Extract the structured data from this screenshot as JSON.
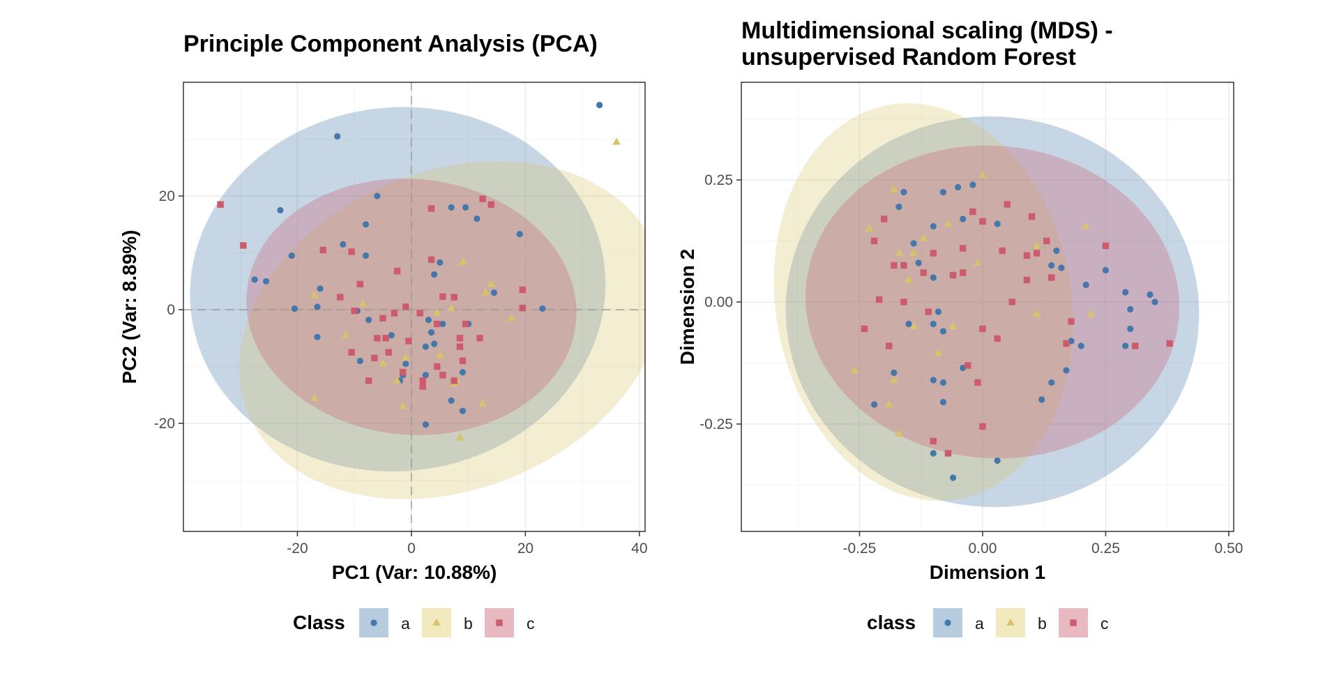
{
  "colors": {
    "a": "#4477aa",
    "b": "#d8c36a",
    "c": "#cc5b6e"
  },
  "fill_colors": {
    "a": "#b8cce0",
    "b": "#f3e9bf",
    "c": "#e9b9c2"
  },
  "chart_data": [
    {
      "type": "scatter",
      "title_lines": [
        "Principle Component Analysis (PCA)"
      ],
      "xlabel": "PC1 (Var: 10.88%)",
      "ylabel": "PC2 (Var: 8.89%)",
      "xlim": [
        -40,
        41
      ],
      "ylim": [
        -39,
        40
      ],
      "xticks": [
        -20,
        0,
        20,
        40
      ],
      "xtick_labels": [
        "-20",
        "0",
        "20",
        "40"
      ],
      "yticks": [
        -20,
        0,
        20
      ],
      "ytick_labels": [
        "-20",
        "0",
        "20"
      ],
      "grid": true,
      "reference_lines": true,
      "legend": {
        "title": "Class",
        "position": "bottom",
        "labels": [
          "a",
          "b",
          "c"
        ]
      },
      "ellipses": [
        {
          "class": "a",
          "cx": -2.4,
          "cy": 3.6,
          "rx": 36.5,
          "ry": 32.0,
          "angle": 6
        },
        {
          "class": "b",
          "cx": 7.0,
          "cy": -3.6,
          "rx": 38.5,
          "ry": 28.0,
          "angle": 22
        },
        {
          "class": "c",
          "cx": 0.0,
          "cy": 0.5,
          "rx": 29.0,
          "ry": 22.5,
          "angle": -5
        }
      ],
      "series": [
        {
          "name": "a",
          "marker": "circle",
          "points": [
            [
              -13,
              30.5
            ],
            [
              33,
              36
            ],
            [
              -6,
              20
            ],
            [
              -23,
              17.5
            ],
            [
              7,
              18
            ],
            [
              9.5,
              18
            ],
            [
              11.5,
              16
            ],
            [
              -8,
              15
            ],
            [
              19,
              13.3
            ],
            [
              -12,
              11.5
            ],
            [
              -21,
              9.5
            ],
            [
              -8,
              9.5
            ],
            [
              -27.5,
              5.3
            ],
            [
              -25.5,
              5
            ],
            [
              5,
              8.3
            ],
            [
              4,
              6.2
            ],
            [
              -16,
              3.7
            ],
            [
              14.5,
              3
            ],
            [
              -20.5,
              0.2
            ],
            [
              -16.5,
              0.5
            ],
            [
              -9.5,
              -0.2
            ],
            [
              23,
              0.2
            ],
            [
              -7.5,
              -1.8
            ],
            [
              3,
              -1.8
            ],
            [
              5.5,
              -2.5
            ],
            [
              10,
              -2.5
            ],
            [
              -16.5,
              -4.8
            ],
            [
              -3.5,
              -4.5
            ],
            [
              3.5,
              -4
            ],
            [
              2.5,
              -6.5
            ],
            [
              4,
              -6
            ],
            [
              -9,
              -9
            ],
            [
              -1,
              -9.5
            ],
            [
              -1.5,
              -11.5
            ],
            [
              9,
              -11
            ],
            [
              2.5,
              -11.5
            ],
            [
              -2,
              -12.5
            ],
            [
              7,
              -16
            ],
            [
              9,
              -17.8
            ],
            [
              2.5,
              -20.2
            ]
          ]
        },
        {
          "name": "b",
          "marker": "triangle",
          "points": [
            [
              36,
              29.5
            ],
            [
              9,
              8.4
            ],
            [
              14,
              4.5
            ],
            [
              13,
              3
            ],
            [
              -17,
              2.5
            ],
            [
              -8.5,
              1
            ],
            [
              7,
              0.2
            ],
            [
              4.5,
              -0.5
            ],
            [
              17.5,
              -1.5
            ],
            [
              -11.5,
              -4.5
            ],
            [
              -1,
              -8.5
            ],
            [
              -5,
              -9.5
            ],
            [
              5,
              -8
            ],
            [
              -2.5,
              -12.5
            ],
            [
              8,
              -12.5
            ],
            [
              7.5,
              -13
            ],
            [
              -1.5,
              -17
            ],
            [
              12.5,
              -16.5
            ],
            [
              -17,
              -15.5
            ],
            [
              8.5,
              -22.5
            ]
          ]
        },
        {
          "name": "c",
          "marker": "square",
          "points": [
            [
              -33.5,
              18.5
            ],
            [
              -29.5,
              11.3
            ],
            [
              3.5,
              17.8
            ],
            [
              12.5,
              19.5
            ],
            [
              14,
              18.5
            ],
            [
              -15.5,
              10.5
            ],
            [
              -10.5,
              10.2
            ],
            [
              3.5,
              8.8
            ],
            [
              -2.5,
              6.8
            ],
            [
              -9,
              4.5
            ],
            [
              19.5,
              3.5
            ],
            [
              -12.5,
              2.2
            ],
            [
              5.5,
              2.3
            ],
            [
              7.5,
              2.2
            ],
            [
              -10,
              -0.2
            ],
            [
              -1,
              0.5
            ],
            [
              19.5,
              0.3
            ],
            [
              -5,
              -1.5
            ],
            [
              -3,
              -0.6
            ],
            [
              1.5,
              -0.6
            ],
            [
              4.5,
              -2.5
            ],
            [
              9.5,
              -2.5
            ],
            [
              -6,
              -5
            ],
            [
              -4.5,
              -5
            ],
            [
              -0.5,
              -5.5
            ],
            [
              8.5,
              -5
            ],
            [
              12,
              -5
            ],
            [
              -4,
              -7.5
            ],
            [
              8.5,
              -6.5
            ],
            [
              -10.5,
              -7.5
            ],
            [
              -6.5,
              -8.5
            ],
            [
              4.5,
              -10
            ],
            [
              9,
              -9
            ],
            [
              -7.5,
              -12.5
            ],
            [
              2,
              -12.5
            ],
            [
              5.5,
              -11.5
            ],
            [
              7.5,
              -12.5
            ],
            [
              2,
              -13.5
            ],
            [
              -1.5,
              -11
            ]
          ]
        }
      ]
    },
    {
      "type": "scatter",
      "title_lines": [
        "Multidimensional scaling (MDS) -",
        "unsupervised Random Forest"
      ],
      "xlabel": "Dimension 1",
      "ylabel": "Dimension 2",
      "xlim": [
        -0.49,
        0.51
      ],
      "ylim": [
        -0.47,
        0.45
      ],
      "xticks": [
        -0.25,
        0.0,
        0.25,
        0.5
      ],
      "xtick_labels": [
        "-0.25",
        "0.00",
        "0.25",
        "0.50"
      ],
      "yticks": [
        -0.25,
        0.0,
        0.25
      ],
      "ytick_labels": [
        "-0.25",
        "0.00",
        "0.25"
      ],
      "grid": true,
      "reference_lines": false,
      "legend": {
        "title": "class",
        "position": "bottom",
        "labels": [
          "a",
          "b",
          "c"
        ]
      },
      "ellipses": [
        {
          "class": "a",
          "cx": 0.02,
          "cy": -0.02,
          "rx": 0.42,
          "ry": 0.4,
          "angle": -5
        },
        {
          "class": "b",
          "cx": -0.12,
          "cy": 0.0,
          "rx": 0.3,
          "ry": 0.41,
          "angle": 10
        },
        {
          "class": "c",
          "cx": 0.02,
          "cy": 0.0,
          "rx": 0.38,
          "ry": 0.32,
          "angle": -5
        }
      ],
      "series": [
        {
          "name": "a",
          "marker": "circle",
          "points": [
            [
              -0.16,
              0.225
            ],
            [
              -0.17,
              0.195
            ],
            [
              -0.14,
              0.12
            ],
            [
              -0.1,
              0.155
            ],
            [
              -0.08,
              0.225
            ],
            [
              -0.05,
              0.235
            ],
            [
              -0.02,
              0.24
            ],
            [
              -0.04,
              0.17
            ],
            [
              0.03,
              0.16
            ],
            [
              0.14,
              0.075
            ],
            [
              0.15,
              0.105
            ],
            [
              0.16,
              0.07
            ],
            [
              0.21,
              0.035
            ],
            [
              0.25,
              0.065
            ],
            [
              -0.13,
              0.08
            ],
            [
              -0.1,
              0.05
            ],
            [
              0.29,
              0.02
            ],
            [
              0.34,
              0.015
            ],
            [
              0.35,
              0.0
            ],
            [
              0.3,
              -0.015
            ],
            [
              0.3,
              -0.055
            ],
            [
              0.29,
              -0.09
            ],
            [
              -0.09,
              -0.02
            ],
            [
              -0.1,
              -0.045
            ],
            [
              -0.15,
              -0.045
            ],
            [
              -0.08,
              -0.06
            ],
            [
              0.18,
              -0.08
            ],
            [
              0.2,
              -0.09
            ],
            [
              -0.18,
              -0.145
            ],
            [
              -0.1,
              -0.16
            ],
            [
              -0.08,
              -0.165
            ],
            [
              -0.04,
              -0.135
            ],
            [
              0.14,
              -0.165
            ],
            [
              0.17,
              -0.14
            ],
            [
              -0.22,
              -0.21
            ],
            [
              -0.08,
              -0.205
            ],
            [
              0.12,
              -0.2
            ],
            [
              -0.1,
              -0.31
            ],
            [
              0.03,
              -0.325
            ],
            [
              -0.06,
              -0.36
            ]
          ]
        },
        {
          "name": "b",
          "marker": "triangle",
          "points": [
            [
              0.0,
              0.26
            ],
            [
              -0.18,
              0.23
            ],
            [
              -0.23,
              0.15
            ],
            [
              -0.07,
              0.16
            ],
            [
              -0.12,
              0.13
            ],
            [
              0.21,
              0.155
            ],
            [
              0.11,
              0.115
            ],
            [
              -0.17,
              0.1
            ],
            [
              -0.14,
              0.1
            ],
            [
              -0.15,
              0.045
            ],
            [
              -0.01,
              0.08
            ],
            [
              0.11,
              -0.025
            ],
            [
              0.22,
              -0.025
            ],
            [
              -0.14,
              -0.05
            ],
            [
              -0.06,
              -0.05
            ],
            [
              -0.09,
              -0.105
            ],
            [
              -0.26,
              -0.14
            ],
            [
              -0.18,
              -0.16
            ],
            [
              -0.19,
              -0.21
            ],
            [
              -0.17,
              -0.27
            ]
          ]
        },
        {
          "name": "c",
          "marker": "square",
          "points": [
            [
              0.05,
              0.2
            ],
            [
              -0.02,
              0.185
            ],
            [
              0.1,
              0.175
            ],
            [
              -0.2,
              0.17
            ],
            [
              0.0,
              0.165
            ],
            [
              0.13,
              0.125
            ],
            [
              -0.22,
              0.125
            ],
            [
              0.25,
              0.115
            ],
            [
              -0.04,
              0.11
            ],
            [
              0.04,
              0.105
            ],
            [
              -0.1,
              0.1
            ],
            [
              0.09,
              0.095
            ],
            [
              0.11,
              0.1
            ],
            [
              -0.18,
              0.075
            ],
            [
              -0.16,
              0.075
            ],
            [
              -0.12,
              0.06
            ],
            [
              -0.06,
              0.055
            ],
            [
              -0.04,
              0.06
            ],
            [
              0.09,
              0.045
            ],
            [
              0.14,
              0.05
            ],
            [
              -0.21,
              0.005
            ],
            [
              -0.16,
              0.0
            ],
            [
              0.06,
              0.0
            ],
            [
              -0.11,
              -0.02
            ],
            [
              0.0,
              -0.055
            ],
            [
              0.18,
              -0.04
            ],
            [
              0.03,
              -0.075
            ],
            [
              -0.24,
              -0.055
            ],
            [
              -0.19,
              -0.09
            ],
            [
              0.17,
              -0.085
            ],
            [
              -0.03,
              -0.13
            ],
            [
              -0.01,
              -0.165
            ],
            [
              0.31,
              -0.09
            ],
            [
              0.38,
              -0.085
            ],
            [
              0.0,
              -0.255
            ],
            [
              -0.1,
              -0.285
            ],
            [
              -0.07,
              -0.31
            ]
          ]
        }
      ]
    }
  ]
}
